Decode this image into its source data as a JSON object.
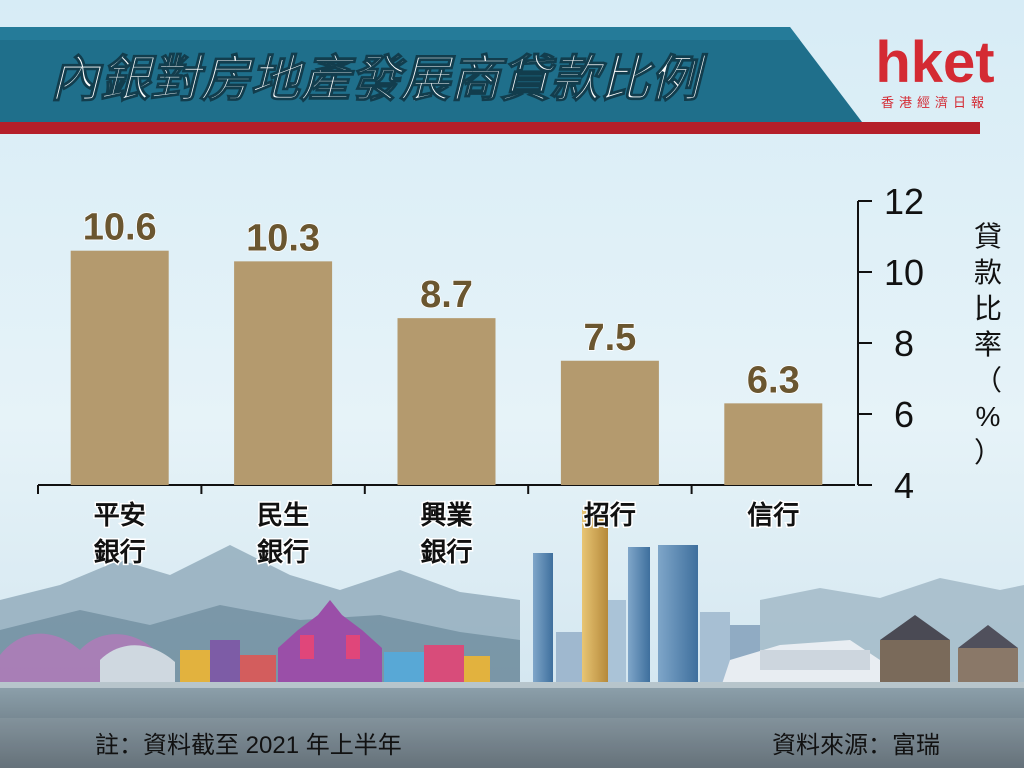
{
  "header": {
    "title": "內銀對房地產發展商貸款比例",
    "logo_text": "hket",
    "logo_subtitle": "香港經濟日報"
  },
  "colors": {
    "bar": "#b49a6e",
    "value_label": "#6a5630",
    "header_band": "#1f6f8b",
    "header_accent": "#b51f2a",
    "logo": "#d42a33"
  },
  "chart_data": {
    "type": "bar",
    "categories": [
      [
        "平安",
        "銀行"
      ],
      [
        "民生",
        "銀行"
      ],
      [
        "興業",
        "銀行"
      ],
      [
        "招行"
      ],
      [
        "信行"
      ]
    ],
    "values": [
      10.6,
      10.3,
      8.7,
      7.5,
      6.3
    ],
    "value_labels": [
      "10.6",
      "10.3",
      "8.7",
      "7.5",
      "6.3"
    ],
    "ylabel": "貸款比率（%）",
    "ylim": [
      4,
      12
    ],
    "yticks": [
      "12",
      "10",
      "8",
      "6",
      "4"
    ],
    "ytick_values": [
      12,
      10,
      8,
      6,
      4
    ],
    "y_axis_side": "right",
    "grid": false,
    "legend": "none"
  },
  "footer": {
    "note": "註：資料截至 2021 年上半年",
    "source": "資料來源：富瑞"
  }
}
